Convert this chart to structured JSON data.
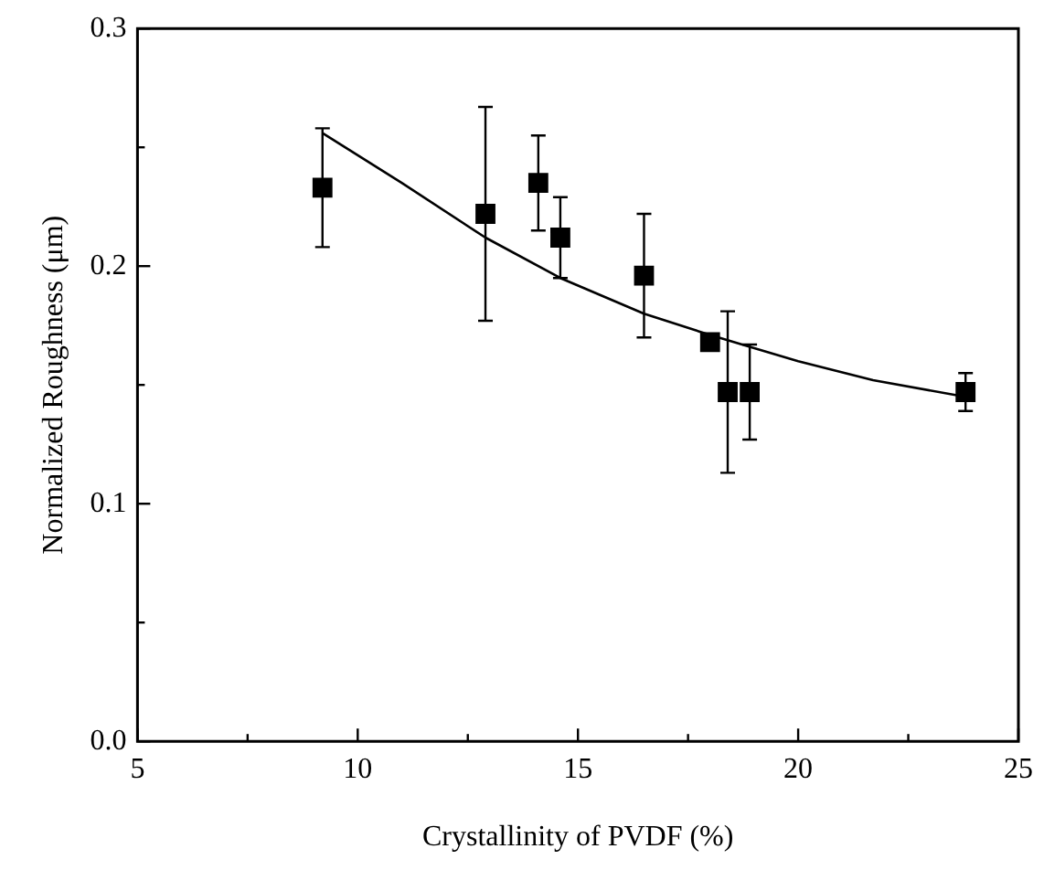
{
  "chart_data": {
    "type": "scatter",
    "xlabel": "Crystallinity of PVDF (%)",
    "ylabel": "Normalized Roughness (μm)",
    "marker": "square",
    "grid": false,
    "legend": false,
    "xlim": [
      5,
      25
    ],
    "xticks": [
      5,
      {
        "value": 7.5,
        "label": null
      },
      10,
      {
        "value": 12.5,
        "label": null
      },
      15,
      {
        "value": 17.5,
        "label": null
      },
      20,
      {
        "value": 22.5,
        "label": null
      },
      25
    ],
    "ylim": [
      0,
      0.3
    ],
    "yticks": [
      {
        "value": 0,
        "label": "0.0"
      },
      {
        "value": 0.05,
        "label": null
      },
      0.1,
      {
        "value": 0.15,
        "label": null
      },
      0.2,
      {
        "value": 0.25,
        "label": null
      },
      0.3
    ],
    "series": [
      {
        "color": "#000000",
        "x": [
          9.2,
          12.9,
          14.1,
          14.6,
          16.5,
          18.0,
          18.4,
          18.9,
          23.8
        ],
        "values": [
          0.233,
          0.222,
          0.235,
          0.212,
          0.196,
          0.168,
          0.147,
          0.147,
          0.147
        ],
        "errors": [
          0.025,
          0.045,
          0.02,
          0.017,
          0.026,
          null,
          0.034,
          0.02,
          0.008
        ]
      },
      {
        "type": "line",
        "color": "#000000",
        "marker": "none",
        "x": [
          9.2,
          11,
          12.9,
          14.6,
          16.5,
          18,
          18.9,
          20,
          21.7,
          23.8
        ],
        "values": [
          0.256,
          0.235,
          0.212,
          0.195,
          0.18,
          0.171,
          0.166,
          0.16,
          0.152,
          0.145
        ]
      }
    ]
  }
}
